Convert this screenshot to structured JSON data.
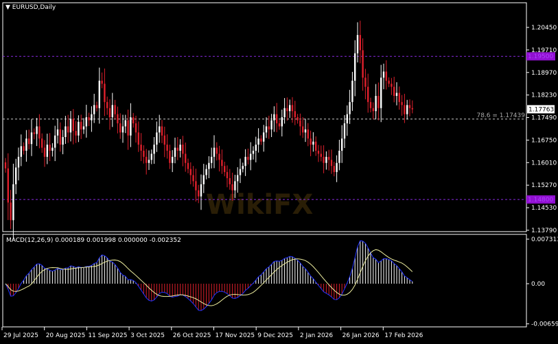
{
  "window": {
    "title": "EURUSD,Daily",
    "menu_icon": "triangle-down-icon"
  },
  "watermark": "WikiFX",
  "colors": {
    "bull": "#ffffff",
    "bear": "#e0202c",
    "background": "#000000",
    "level_line": "#8a2be2",
    "macd_line": "#2233ff",
    "signal_line": "#f0f0a0",
    "hist_pos": "#ffffff",
    "hist_neg": "#e0202c"
  },
  "price_axis": {
    "ticks": [
      "1.20450",
      "1.19710",
      "1.18970",
      "1.18230",
      "1.17490",
      "1.16750",
      "1.16010",
      "1.15270",
      "1.14530",
      "1.13790"
    ],
    "tick_values": [
      1.2045,
      1.1971,
      1.1897,
      1.1823,
      1.1749,
      1.1675,
      1.1601,
      1.1527,
      1.1453,
      1.1379
    ]
  },
  "levels": {
    "upper": {
      "label": "1.19500",
      "value": 1.195
    },
    "lower": {
      "label": "1.14800",
      "value": 1.148
    },
    "fib": {
      "label": "78.6 = 1.17439",
      "value": 1.17439
    },
    "current": {
      "label": "1.17763",
      "value": 1.17763
    }
  },
  "macd": {
    "label": "MACD(12,26,9) 0.000189 0.001998 0.000000 -0.002352",
    "ticks": [
      "0.007313",
      "0.00",
      "-0.006594"
    ],
    "tick_values": [
      0.007313,
      0,
      -0.006594
    ]
  },
  "date_axis": {
    "labels": [
      "29 Jul 2025",
      "20 Aug 2025",
      "11 Sep 2025",
      "3 Oct 2025",
      "26 Oct 2025",
      "17 Nov 2025",
      "9 Dec 2025",
      "2 Jan 2026",
      "26 Jan 2026",
      "17 Feb 2026"
    ]
  },
  "chart_data": {
    "type": "candlestick",
    "symbol": "EURUSD",
    "timeframe": "Daily",
    "ylim": [
      1.1379,
      1.2045
    ],
    "closes": [
      1.1582,
      1.147,
      1.1412,
      1.153,
      1.1585,
      1.162,
      1.1655,
      1.164,
      1.168,
      1.1662,
      1.17,
      1.1695,
      1.172,
      1.168,
      1.165,
      1.162,
      1.166,
      1.164,
      1.165,
      1.169,
      1.171,
      1.166,
      1.1685,
      1.172,
      1.17,
      1.1745,
      1.1705,
      1.169,
      1.1735,
      1.171,
      1.172,
      1.175,
      1.174,
      1.176,
      1.179,
      1.178,
      1.187,
      1.186,
      1.18,
      1.178,
      1.175,
      1.179,
      1.176,
      1.173,
      1.17,
      1.172,
      1.174,
      1.169,
      1.175,
      1.173,
      1.17,
      1.166,
      1.164,
      1.162,
      1.16,
      1.161,
      1.163,
      1.166,
      1.17,
      1.172,
      1.169,
      1.166,
      1.164,
      1.16,
      1.162,
      1.165,
      1.164,
      1.166,
      1.163,
      1.16,
      1.158,
      1.156,
      1.154,
      1.151,
      1.149,
      1.153,
      1.156,
      1.158,
      1.16,
      1.162,
      1.165,
      1.163,
      1.161,
      1.159,
      1.157,
      1.155,
      1.153,
      1.151,
      1.154,
      1.156,
      1.158,
      1.159,
      1.162,
      1.161,
      1.163,
      1.164,
      1.166,
      1.168,
      1.167,
      1.17,
      1.172,
      1.171,
      1.174,
      1.176,
      1.173,
      1.172,
      1.175,
      1.178,
      1.177,
      1.179,
      1.177,
      1.175,
      1.174,
      1.172,
      1.17,
      1.171,
      1.168,
      1.166,
      1.167,
      1.164,
      1.163,
      1.162,
      1.16,
      1.162,
      1.161,
      1.159,
      1.157,
      1.16,
      1.164,
      1.168,
      1.173,
      1.176,
      1.18,
      1.187,
      1.196,
      1.202,
      1.197,
      1.188,
      1.185,
      1.18,
      1.178,
      1.177,
      1.182,
      1.178,
      1.188,
      1.19,
      1.187,
      1.186,
      1.185,
      1.182,
      1.183,
      1.18,
      1.179,
      1.176,
      1.179,
      1.178,
      1.1776
    ]
  }
}
